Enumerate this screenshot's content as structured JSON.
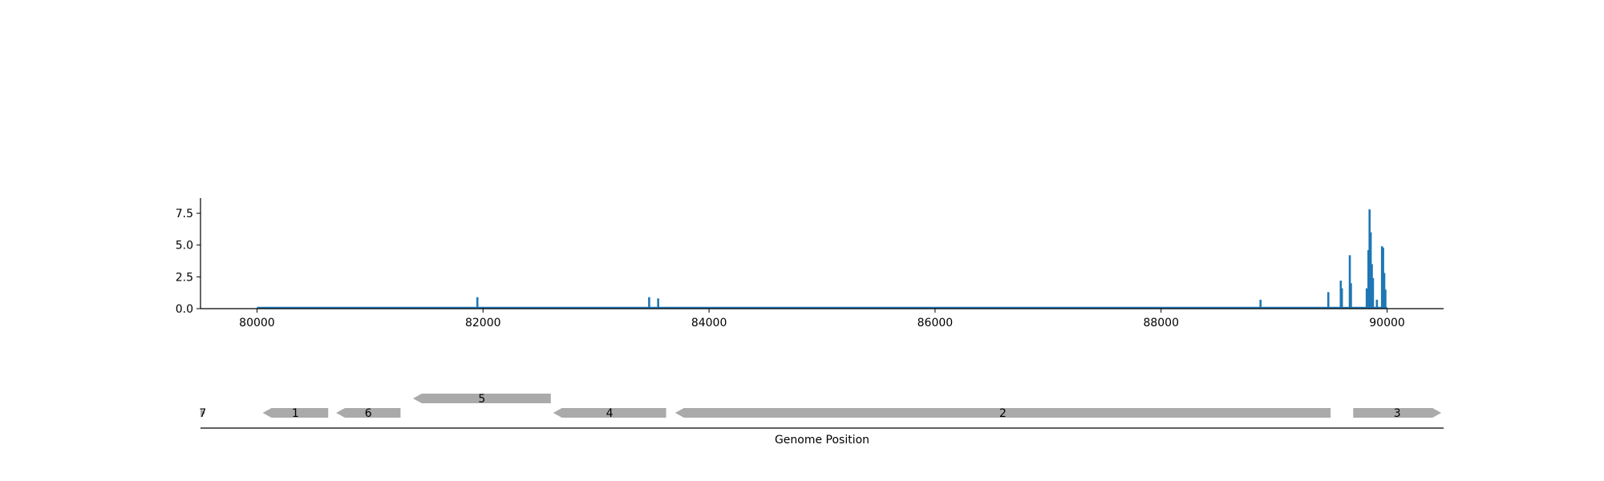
{
  "colors": {
    "line": "#1f77b4",
    "gene": "#aaaaaa",
    "axis": "#000000",
    "background": "#ffffff"
  },
  "chart_data": [
    {
      "type": "line",
      "title": "",
      "xlabel": "",
      "ylabel": "",
      "xlim": [
        79500,
        90500
      ],
      "ylim": [
        0,
        8.7
      ],
      "xticks": [
        80000,
        82000,
        84000,
        86000,
        88000,
        90000
      ],
      "xtick_labels": [
        "80000",
        "82000",
        "84000",
        "86000",
        "88000",
        "90000"
      ],
      "yticks": [
        0,
        2.5,
        5,
        7.5
      ],
      "ytick_labels": [
        "0.0",
        "2.5",
        "5.0",
        "7.5"
      ],
      "grid": false,
      "legend": "none",
      "series": [
        {
          "x_range": [
            80000,
            90000
          ],
          "baseline": 0,
          "peaks": [
            {
              "x": 81950,
              "y": 0.9
            },
            {
              "x": 83470,
              "y": 0.9
            },
            {
              "x": 83550,
              "y": 0.8
            },
            {
              "x": 88880,
              "y": 0.7
            },
            {
              "x": 89480,
              "y": 1.3
            },
            {
              "x": 89590,
              "y": 2.2
            },
            {
              "x": 89600,
              "y": 1.6
            },
            {
              "x": 89670,
              "y": 4.2
            },
            {
              "x": 89680,
              "y": 2.0
            },
            {
              "x": 89820,
              "y": 1.6
            },
            {
              "x": 89835,
              "y": 4.6
            },
            {
              "x": 89845,
              "y": 7.8
            },
            {
              "x": 89855,
              "y": 6.0
            },
            {
              "x": 89865,
              "y": 3.5
            },
            {
              "x": 89875,
              "y": 2.4
            },
            {
              "x": 89910,
              "y": 0.7
            },
            {
              "x": 89955,
              "y": 4.9
            },
            {
              "x": 89965,
              "y": 4.8
            },
            {
              "x": 89975,
              "y": 2.8
            },
            {
              "x": 89985,
              "y": 1.5
            }
          ]
        }
      ]
    },
    {
      "type": "gene-track",
      "xlabel": "Genome Position",
      "xlim": [
        79500,
        90500
      ],
      "genes": [
        {
          "label": "7",
          "start": 79500,
          "end": 79540,
          "strand": "+",
          "row": 0
        },
        {
          "label": "1",
          "start": 80050,
          "end": 80630,
          "strand": "-",
          "row": 0
        },
        {
          "label": "6",
          "start": 80700,
          "end": 81270,
          "strand": "-",
          "row": 0
        },
        {
          "label": "5",
          "start": 81380,
          "end": 82600,
          "strand": "-",
          "row": 1
        },
        {
          "label": "4",
          "start": 82620,
          "end": 83620,
          "strand": "-",
          "row": 0
        },
        {
          "label": "2",
          "start": 83700,
          "end": 89500,
          "strand": "-",
          "row": 0
        },
        {
          "label": "3",
          "start": 89700,
          "end": 90480,
          "strand": "+",
          "row": 0
        }
      ]
    }
  ]
}
